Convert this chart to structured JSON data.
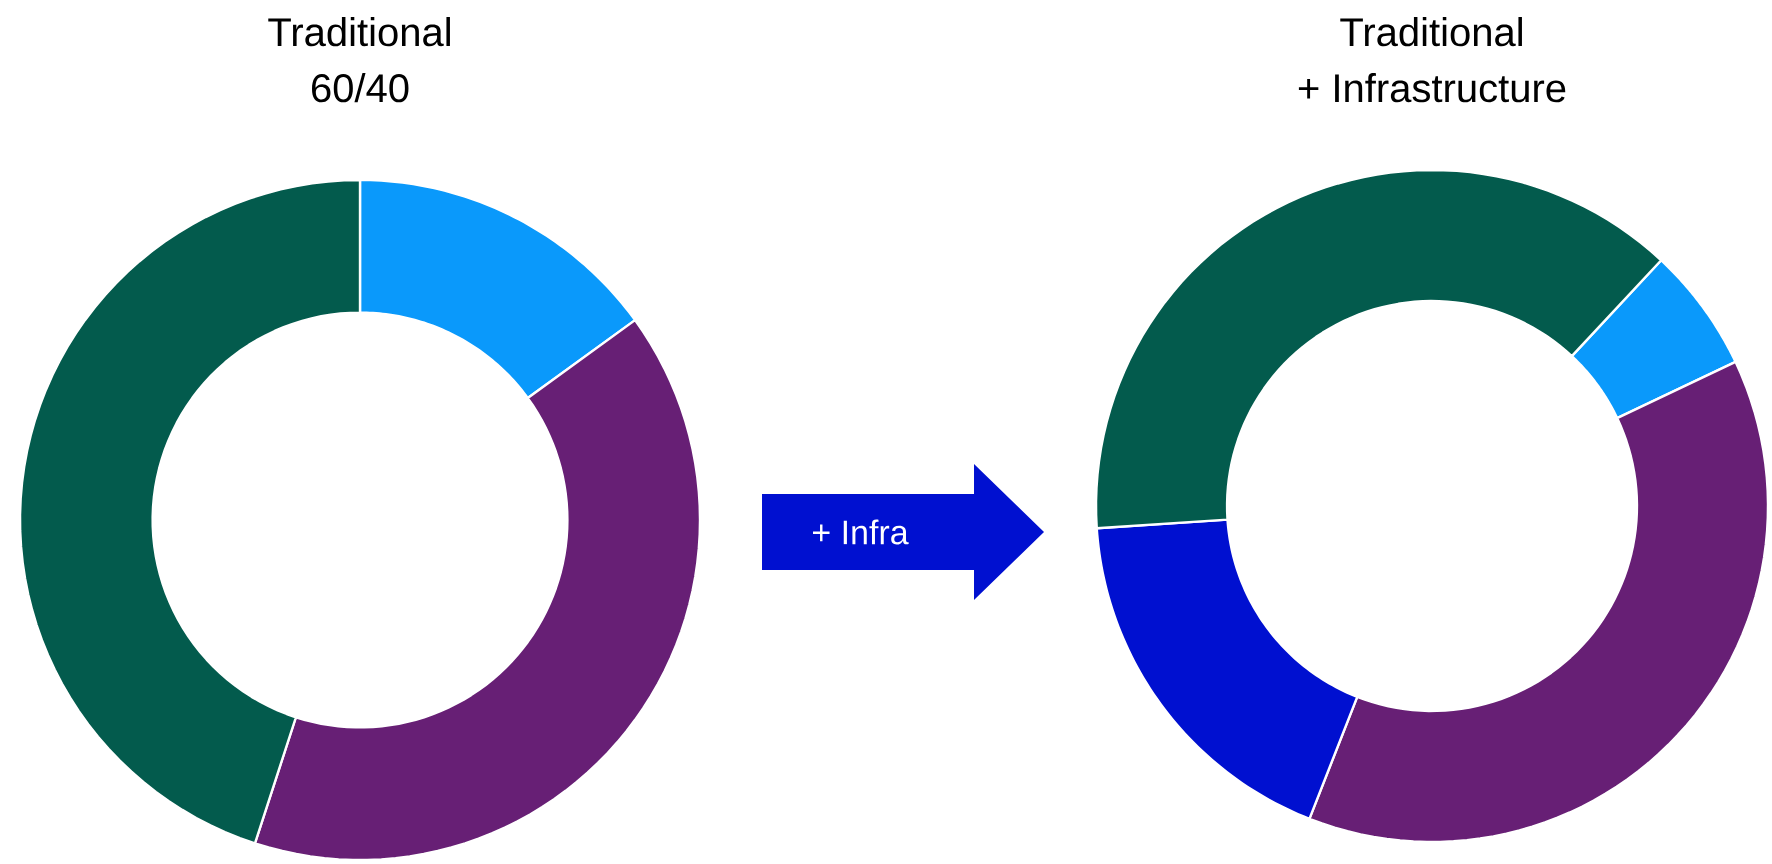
{
  "chart_data": [
    {
      "type": "donut",
      "title": "Traditional",
      "subtitle": "60/40",
      "categories": [
        null,
        null,
        null
      ],
      "values": [
        15,
        40,
        45
      ],
      "colors": [
        "#0a99fb",
        "#671f75",
        "#035b4d"
      ]
    },
    {
      "type": "donut",
      "title": "Traditional",
      "subtitle": "+ Infrastructure",
      "categories": [
        null,
        null,
        null,
        null
      ],
      "values": [
        6,
        38,
        18,
        38
      ],
      "colors": [
        "#0a99fb",
        "#671f75",
        "#0010d0",
        "#035b4d"
      ],
      "annotations": [
        "+ Infra"
      ]
    }
  ]
}
